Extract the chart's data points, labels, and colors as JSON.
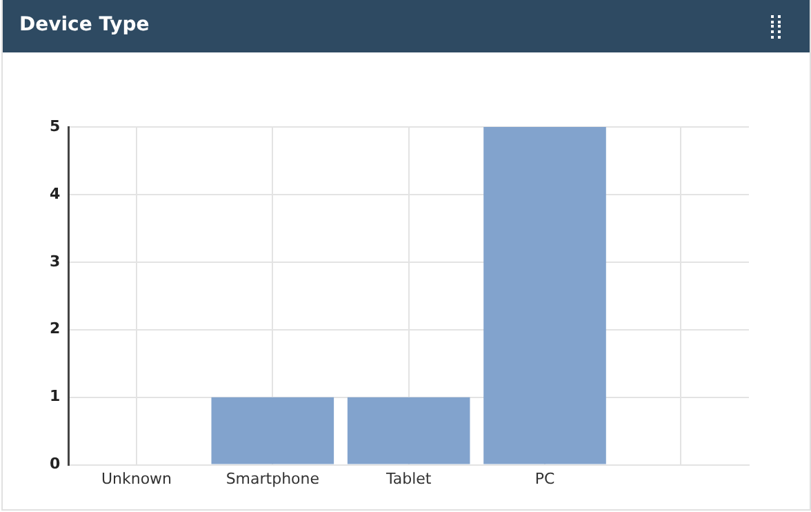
{
  "chart_data": {
    "type": "bar",
    "title": "Device Type",
    "categories": [
      "Unknown",
      "Smartphone",
      "Tablet",
      "PC",
      null
    ],
    "values": [
      0,
      1,
      1,
      5,
      0
    ],
    "color": "#82a3cd",
    "ylim": [
      0,
      5
    ],
    "yticks": [
      0,
      1,
      2,
      3,
      4,
      5
    ],
    "grid": true,
    "legend": false
  }
}
